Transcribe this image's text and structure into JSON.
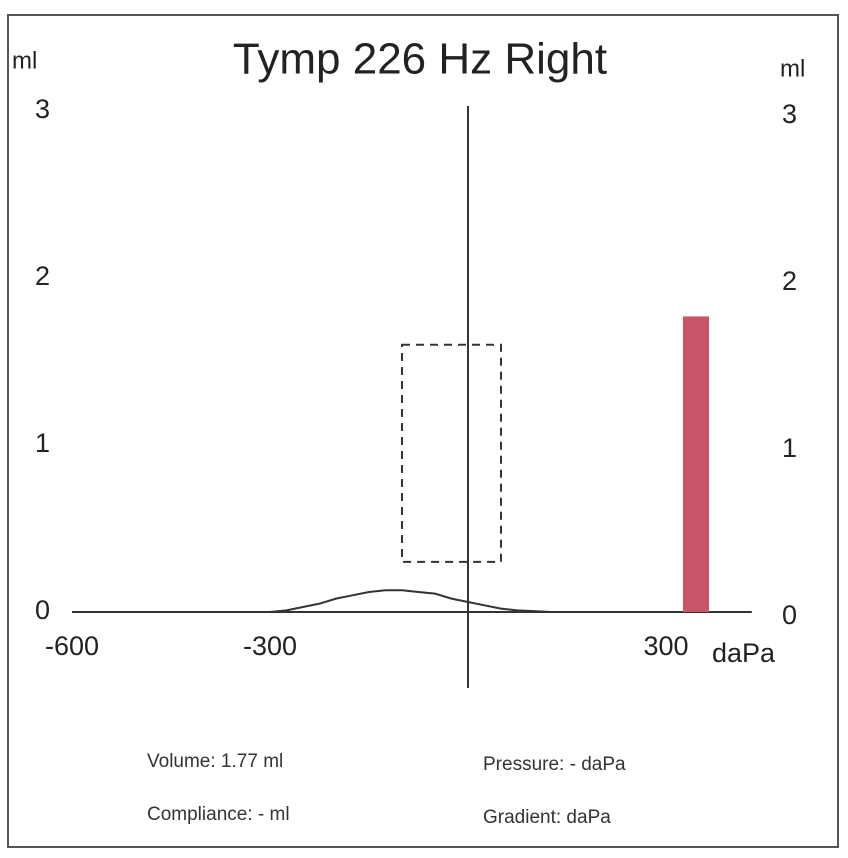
{
  "chart_data": {
    "type": "line",
    "title": "Tymp 226 Hz Right",
    "y_label": "ml",
    "y2_label": "ml",
    "x_label": "daPa",
    "xlim": [
      -600,
      430
    ],
    "xticks": [
      -600,
      -300,
      300
    ],
    "ylim": [
      0,
      3
    ],
    "yticks": [
      0,
      1,
      2,
      3
    ],
    "y2lim": [
      0,
      3
    ],
    "y2ticks": [
      0,
      1,
      2,
      3
    ],
    "x": [
      -300,
      -275,
      -250,
      -225,
      -200,
      -175,
      -150,
      -125,
      -100,
      -75,
      -50,
      -25,
      0,
      25,
      50,
      75,
      100,
      125,
      150
    ],
    "series": [
      {
        "color": "#333333",
        "values": [
          0,
          0.01,
          0.03,
          0.05,
          0.08,
          0.1,
          0.12,
          0.13,
          0.13,
          0.12,
          0.11,
          0.08,
          0.06,
          0.04,
          0.02,
          0.01,
          0.005,
          0,
          0
        ]
      }
    ],
    "volume_bar": {
      "value": 1.77,
      "color": "#c85468"
    },
    "normal_box": {
      "x": [
        -100,
        50
      ],
      "y": [
        0.3,
        1.6
      ]
    },
    "info": [
      "Volume: 1.77 ml",
      "Compliance: - ml",
      "Pressure: - daPa",
      "Gradient: daPa"
    ]
  }
}
